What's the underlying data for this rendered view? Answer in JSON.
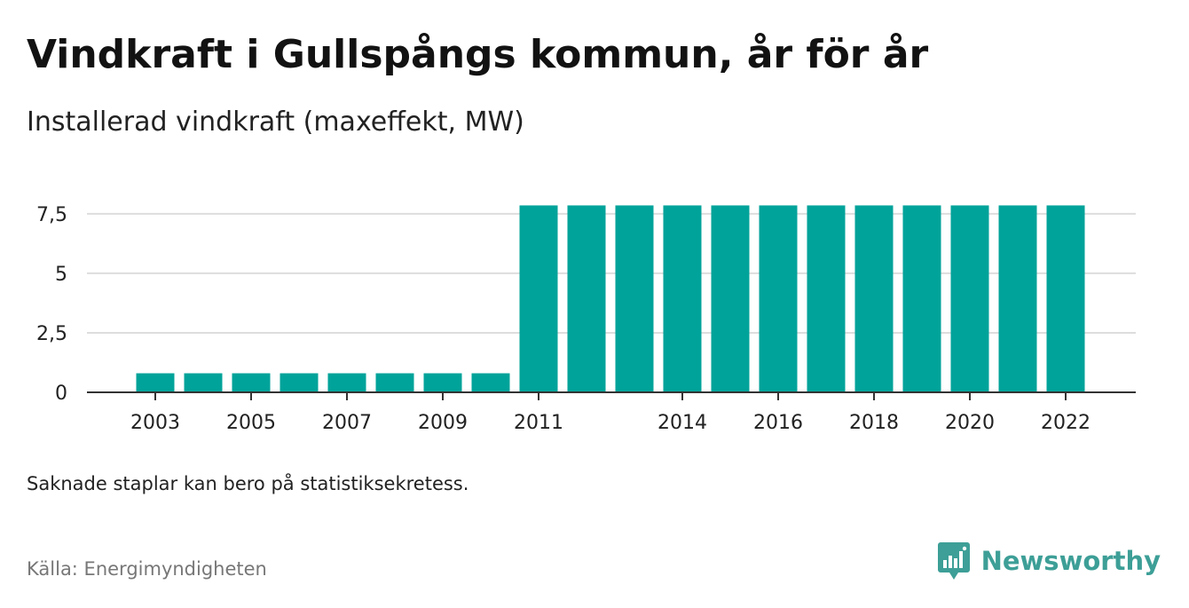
{
  "title": "Vindkraft i Gullspångs kommun, år för år",
  "subtitle": "Installerad vindkraft (maxeffekt, MW)",
  "note": "Saknade staplar kan bero på statistiksekretess.",
  "source": "Källa: Energimyndigheten",
  "brand": {
    "name": "Newsworthy",
    "icon": "newsworthy-logo-icon",
    "color": "#3d9f97"
  },
  "chart_data": {
    "type": "bar",
    "categories": [
      "2003",
      "2004",
      "2005",
      "2006",
      "2007",
      "2008",
      "2009",
      "2010",
      "2011",
      "2012",
      "2013",
      "2014",
      "2015",
      "2016",
      "2017",
      "2018",
      "2019",
      "2020",
      "2021",
      "2022"
    ],
    "values": [
      0.8,
      0.8,
      0.8,
      0.8,
      0.8,
      0.8,
      0.8,
      0.8,
      7.85,
      7.85,
      7.85,
      7.85,
      7.85,
      7.85,
      7.85,
      7.85,
      7.85,
      7.85,
      7.85,
      7.85
    ],
    "x_tick_labels": [
      "2003",
      "2005",
      "2007",
      "2009",
      "2011",
      "2014",
      "2016",
      "2018",
      "2020",
      "2022"
    ],
    "y_ticks": [
      0,
      2.5,
      5,
      7.5
    ],
    "y_tick_labels": [
      "0",
      "2,5",
      "5",
      "7,5"
    ],
    "ylim": [
      0,
      8.5
    ],
    "grid": true,
    "bar_color": "#00a39a",
    "gridline_color": "#dddddd",
    "axis_color": "#333333"
  }
}
